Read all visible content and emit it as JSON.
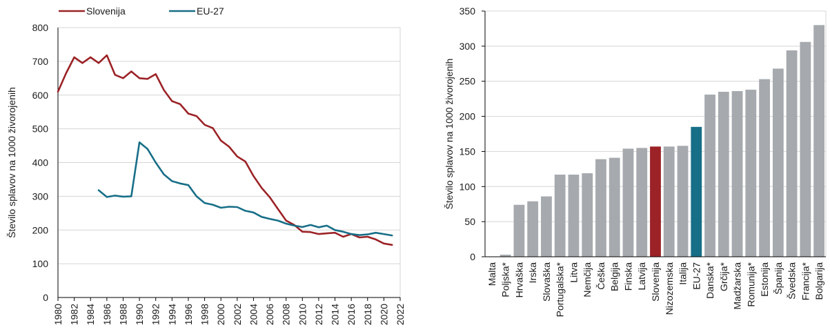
{
  "colors": {
    "slovenija": "#9b2226",
    "eu27": "#176e87",
    "bar_default": "#a6aaaf",
    "grid": "#d4d4d4",
    "axis": "#000000"
  },
  "chart_data": [
    {
      "type": "line",
      "title": "",
      "xlabel": "",
      "ylabel": "Število splavov na 1000 živorojenih",
      "xlim": [
        1980,
        2022
      ],
      "ylim": [
        0,
        800
      ],
      "yticks": [
        0,
        100,
        200,
        300,
        400,
        500,
        600,
        700,
        800
      ],
      "xticks": [
        1980,
        1982,
        1984,
        1986,
        1988,
        1990,
        1992,
        1994,
        1996,
        1998,
        2000,
        2002,
        2004,
        2006,
        2008,
        2010,
        2012,
        2014,
        2016,
        2018,
        2020,
        2022
      ],
      "grid": true,
      "legend": "top",
      "series": [
        {
          "name": "Slovenija",
          "color": "#9b2226",
          "x": [
            1980,
            1981,
            1982,
            1983,
            1984,
            1985,
            1986,
            1987,
            1988,
            1989,
            1990,
            1991,
            1992,
            1993,
            1994,
            1995,
            1996,
            1997,
            1998,
            1999,
            2000,
            2001,
            2002,
            2003,
            2004,
            2005,
            2006,
            2007,
            2008,
            2009,
            2010,
            2011,
            2012,
            2013,
            2014,
            2015,
            2016,
            2017,
            2018,
            2019,
            2020,
            2021
          ],
          "y": [
            610,
            665,
            712,
            695,
            712,
            695,
            718,
            660,
            650,
            670,
            650,
            648,
            662,
            615,
            582,
            573,
            545,
            538,
            512,
            502,
            465,
            447,
            418,
            403,
            360,
            325,
            297,
            262,
            228,
            215,
            195,
            194,
            188,
            190,
            192,
            180,
            188,
            178,
            180,
            172,
            160,
            156
          ]
        },
        {
          "name": "EU-27",
          "color": "#176e87",
          "x": [
            1985,
            1986,
            1987,
            1988,
            1989,
            1990,
            1991,
            1992,
            1993,
            1994,
            1995,
            1996,
            1997,
            1998,
            1999,
            2000,
            2001,
            2002,
            2003,
            2004,
            2005,
            2006,
            2007,
            2008,
            2009,
            2010,
            2011,
            2012,
            2013,
            2014,
            2015,
            2016,
            2017,
            2018,
            2019,
            2020,
            2021
          ],
          "y": [
            318,
            298,
            302,
            299,
            300,
            460,
            440,
            400,
            365,
            345,
            338,
            333,
            300,
            280,
            275,
            266,
            269,
            268,
            257,
            252,
            239,
            233,
            228,
            219,
            213,
            209,
            215,
            208,
            213,
            200,
            195,
            188,
            185,
            187,
            192,
            188,
            184
          ]
        }
      ]
    },
    {
      "type": "bar",
      "title": "",
      "xlabel": "",
      "ylabel": "Število splavov na 1000 živorojenih",
      "ylim": [
        0,
        350
      ],
      "yticks": [
        0,
        50,
        100,
        150,
        200,
        250,
        300,
        350
      ],
      "grid": true,
      "categories": [
        "Malta",
        "Poljska*",
        "Hrvaška",
        "Irska",
        "Slovaška",
        "Portugalska*",
        "Litva",
        "Nemčija",
        "Češka",
        "Belgija",
        "Finska",
        "Latvija",
        "Slovenija",
        "Nizozemska",
        "Italija",
        "EU-27",
        "Danska*",
        "Grčija*",
        "Madžarska",
        "Romunija*",
        "Estonija",
        "Španija",
        "Švedska",
        "Francija*",
        "Bolgarija"
      ],
      "values": [
        0,
        3,
        74,
        79,
        86,
        117,
        117,
        119,
        139,
        141,
        154,
        155,
        157,
        157,
        158,
        185,
        231,
        235,
        236,
        238,
        253,
        268,
        294,
        306,
        330
      ],
      "highlight": {
        "Slovenija": "#9b2226",
        "EU-27": "#176e87"
      }
    }
  ]
}
